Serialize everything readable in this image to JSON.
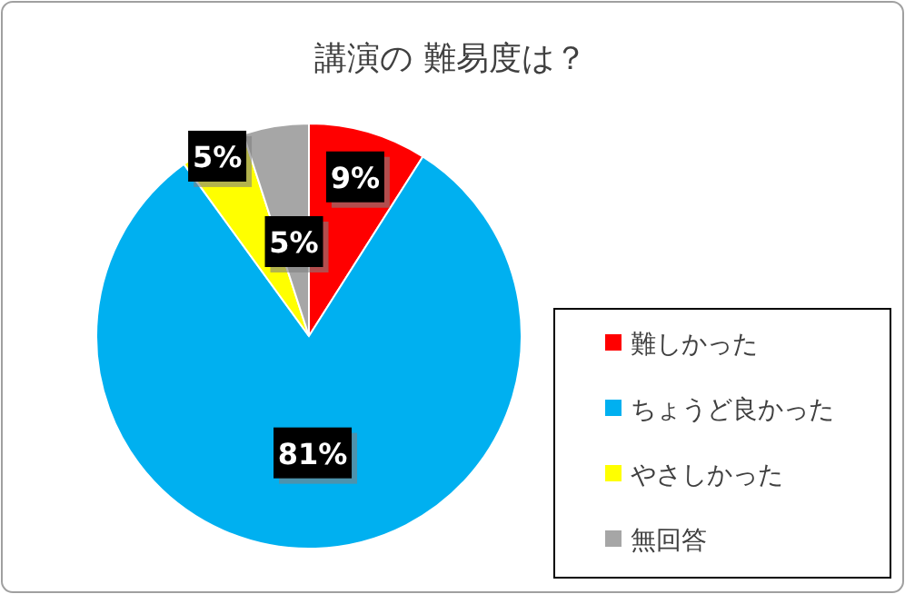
{
  "chart_data": {
    "type": "pie",
    "title": "講演の 難易度は？",
    "categories": [
      "難しかった",
      "ちょうど良かった",
      "やさしかった",
      "無回答"
    ],
    "values": [
      9,
      81,
      5,
      5
    ],
    "colors": [
      "#ff0000",
      "#00b0f0",
      "#ffff00",
      "#a6a6a6"
    ],
    "value_labels": [
      "9%",
      "81%",
      "5%",
      "5%"
    ],
    "legend": "right"
  }
}
